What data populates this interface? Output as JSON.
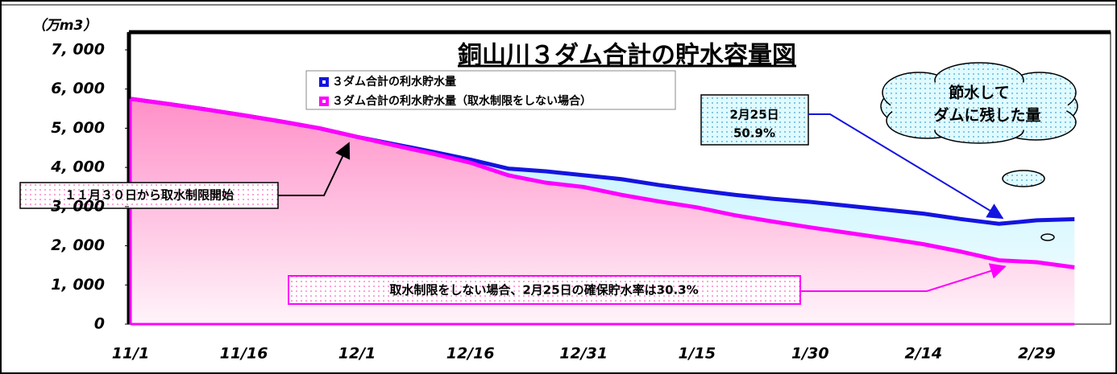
{
  "chart_data": {
    "type": "area-line",
    "title": "銅山川３ダム合計の貯水容量図",
    "y_label": "（万m3）",
    "categories": [
      "11/1",
      null,
      null,
      "11/16",
      null,
      null,
      "12/1",
      null,
      null,
      "12/16",
      null,
      null,
      "12/31",
      null,
      null,
      "1/15",
      null,
      null,
      "1/30",
      null,
      null,
      "2/14",
      null,
      null,
      "2/29",
      null
    ],
    "series": [
      {
        "name": "３ダム合計の利水貯水量",
        "color": "#1414e0",
        "values": [
          5750,
          5620,
          5480,
          5330,
          5170,
          5000,
          4780,
          4590,
          4400,
          4200,
          3970,
          3900,
          3800,
          3700,
          3550,
          3420,
          3300,
          3200,
          3120,
          3020,
          2920,
          2820,
          2680,
          2560,
          2650,
          2680
        ]
      },
      {
        "name": "３ダム合計の利水貯水量（取水制限をしない場合）",
        "color": "#ff00ff",
        "values": [
          5750,
          5620,
          5480,
          5330,
          5170,
          5000,
          4780,
          4560,
          4350,
          4120,
          3800,
          3610,
          3500,
          3300,
          3130,
          2980,
          2780,
          2620,
          2470,
          2330,
          2190,
          2040,
          1850,
          1630,
          1580,
          1450
        ]
      }
    ],
    "ylim": [
      0,
      7000
    ],
    "yticks": [
      0,
      {
        "value": 1000,
        "label": "1, 000"
      },
      {
        "value": 2000,
        "label": "2, 000"
      },
      {
        "value": 3000,
        "label": "3, 000"
      },
      {
        "value": 4000,
        "label": "4, 000"
      },
      {
        "value": 5000,
        "label": "5, 000"
      },
      {
        "value": 6000,
        "label": "6, 000"
      },
      {
        "value": 7000,
        "label": "7, 000"
      }
    ],
    "annotations": {
      "start": "１１月３０日から取水制限開始",
      "rate_date": "2月25日",
      "rate_value": "50.9%",
      "saved_1": "節水して",
      "saved_2": "ダムに残した量",
      "bottom": "取水制限をしない場合、2月25日の確保貯水率は30.3%"
    }
  }
}
